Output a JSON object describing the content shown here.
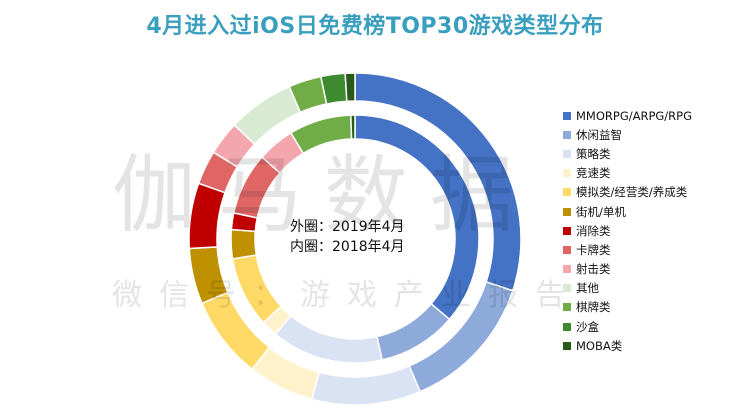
{
  "chart_data": {
    "type": "donut",
    "title": "4月进入过iOS日免费榜TOP30游戏类型分布",
    "categories": [
      "MMORPG/ARPG/RPG",
      "休闲益智",
      "策略类",
      "竞速类",
      "模拟类/经营类/养成类",
      "街机/单机",
      "消除类",
      "卡牌类",
      "射击类",
      "其他",
      "棋牌类",
      "沙盒",
      "MOBA类"
    ],
    "colors": [
      "#4472c4",
      "#8eaadb",
      "#dae3f3",
      "#fff2cc",
      "#ffd966",
      "#bf9000",
      "#c00000",
      "#e06666",
      "#f4a6ad",
      "#d9ead3",
      "#70ad47",
      "#3d8b2e",
      "#2a5a1a"
    ],
    "legend_position": "right",
    "series": [
      {
        "name": "外圈：2019年4月",
        "ring": "outer",
        "values": [
          25.5,
          11.5,
          9.0,
          5.5,
          6.8,
          4.6,
          5.4,
          2.8,
          2.8,
          5.5,
          2.7,
          2.0,
          0.8
        ]
      },
      {
        "name": "内圈：2018年4月",
        "ring": "inner",
        "values": [
          33.5,
          9.5,
          13.5,
          2.0,
          8.5,
          3.5,
          2.0,
          7.5,
          4.5,
          0.0,
          7.5,
          0.0,
          0.5
        ]
      }
    ],
    "center_label": [
      "外圈：2019年4月",
      "内圈：2018年4月"
    ]
  },
  "watermark": {
    "line1": "伽马数据",
    "line2": "微信号：游戏产业报告"
  }
}
